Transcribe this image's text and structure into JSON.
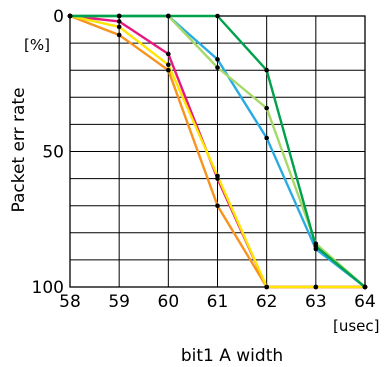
{
  "chart_data": {
    "type": "line",
    "title": "",
    "xlabel": "bit1 A width",
    "ylabel": "Packet err rate",
    "x_unit": "[usec]",
    "y_unit": "[%]",
    "xlim": [
      58,
      64
    ],
    "ylim": [
      0,
      100
    ],
    "y_inverted": true,
    "grid": true,
    "x_ticks": [
      "58",
      "59",
      "60",
      "61",
      "62",
      "63",
      "64"
    ],
    "y_ticks": [
      {
        "value": 0,
        "label": "0"
      },
      {
        "value": 50,
        "label": "50"
      },
      {
        "value": 100,
        "label": "100"
      }
    ],
    "y_gridlines": [
      0,
      10,
      20,
      30,
      40,
      50,
      60,
      70,
      80,
      90,
      100
    ],
    "x": [
      58,
      59,
      60,
      61,
      62,
      63,
      64
    ],
    "series": [
      {
        "color": "#f7931e",
        "values": [
          0,
          7,
          20,
          70,
          100,
          100,
          100
        ]
      },
      {
        "color": "#e5197f",
        "values": [
          0,
          2,
          14,
          60,
          100,
          100,
          100
        ]
      },
      {
        "color": "#ffe600",
        "values": [
          0,
          4,
          18,
          59,
          100,
          100,
          100
        ]
      },
      {
        "color": "#29abe2",
        "values": [
          0,
          0,
          0,
          16,
          45,
          86,
          100
        ]
      },
      {
        "color": "#a6d96a",
        "values": [
          0,
          0,
          0,
          19,
          34,
          84,
          100
        ]
      },
      {
        "color": "#00a14b",
        "values": [
          0,
          0,
          0,
          0,
          20,
          85,
          100
        ]
      }
    ]
  }
}
